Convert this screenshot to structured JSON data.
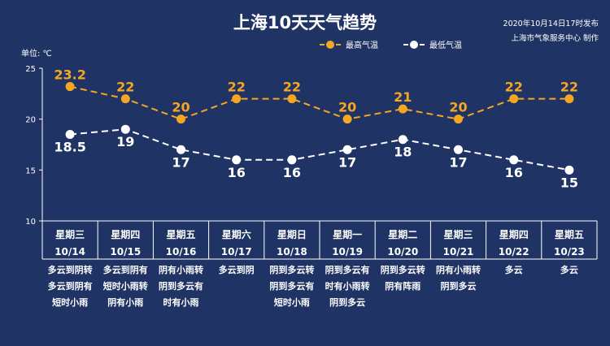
{
  "title": "上海10天天气趋势",
  "publish_time": "2020年10月14日17时发布",
  "publisher": "上海市气象服务中心 制作",
  "unit_label": "单位:  ℃",
  "colors": {
    "background": "#1f3364",
    "high": "#f5a623",
    "low": "#ffffff",
    "grid": "#ffffff"
  },
  "chart_data": {
    "type": "line",
    "categories": [
      "星期三 10/14",
      "星期四 10/15",
      "星期五 10/16",
      "星期六 10/17",
      "星期日 10/18",
      "星期一 10/19",
      "星期二 10/20",
      "星期三 10/21",
      "星期四 10/22",
      "星期五 10/23"
    ],
    "series": [
      {
        "name": "最高气温",
        "values": [
          23.2,
          22,
          20,
          22,
          22,
          20,
          21,
          20,
          22,
          22
        ]
      },
      {
        "name": "最低气温",
        "values": [
          18.5,
          19,
          17,
          16,
          16,
          17,
          18,
          17,
          16,
          15
        ]
      }
    ],
    "value_labels": {
      "high": [
        "23.2",
        "22",
        "20",
        "22",
        "22",
        "20",
        "21",
        "20",
        "22",
        "22"
      ],
      "low": [
        "18.5",
        "19",
        "17",
        "16",
        "16",
        "17",
        "18",
        "17",
        "16",
        "15"
      ]
    },
    "ylim": [
      10,
      25
    ],
    "yticks": [
      "10",
      "15",
      "20",
      "25"
    ],
    "legend": "top-right",
    "grid": false
  },
  "days": [
    {
      "weekday": "星期三",
      "date": "10/14",
      "desc": [
        "多云到阴转",
        "多云到阴有",
        "短时小雨"
      ]
    },
    {
      "weekday": "星期四",
      "date": "10/15",
      "desc": [
        "多云到阴有",
        "短时小雨转",
        "阴有小雨"
      ]
    },
    {
      "weekday": "星期五",
      "date": "10/16",
      "desc": [
        "阴有小雨转",
        "阴到多云有",
        "时有小雨"
      ]
    },
    {
      "weekday": "星期六",
      "date": "10/17",
      "desc": [
        "多云到阴"
      ]
    },
    {
      "weekday": "星期日",
      "date": "10/18",
      "desc": [
        "阴到多云转",
        "阴到多云有",
        "短时小雨"
      ]
    },
    {
      "weekday": "星期一",
      "date": "10/19",
      "desc": [
        "阴到多云有",
        "时有小雨转",
        "阴到多云"
      ]
    },
    {
      "weekday": "星期二",
      "date": "10/20",
      "desc": [
        "阴到多云转",
        "阴有阵雨"
      ]
    },
    {
      "weekday": "星期三",
      "date": "10/21",
      "desc": [
        "阴有小雨转",
        "阴到多云"
      ]
    },
    {
      "weekday": "星期四",
      "date": "10/22",
      "desc": [
        "多云"
      ]
    },
    {
      "weekday": "星期五",
      "date": "10/23",
      "desc": [
        "多云"
      ]
    }
  ]
}
